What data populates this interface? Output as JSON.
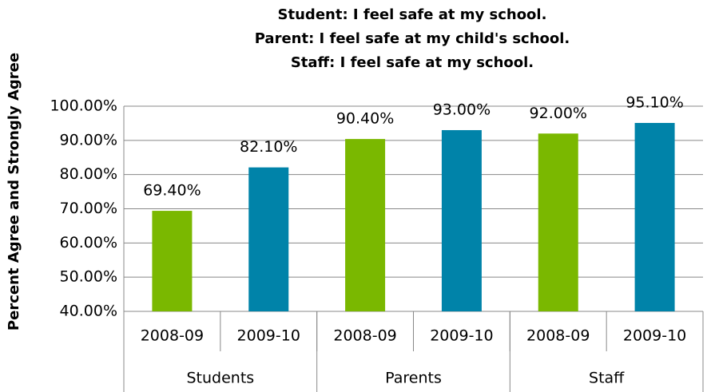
{
  "chart_data": {
    "type": "bar",
    "title": [
      "Student: I feel safe at my school.",
      "Parent: I feel safe at my child's school.",
      "Staff: I feel safe at my school."
    ],
    "y_label": "Percent Agree and Strongly Agree",
    "categories": [
      "2008-09",
      "2009-10",
      "2008-09",
      "2009-10",
      "2008-09",
      "2009-10"
    ],
    "groups": [
      "Students",
      "Parents",
      "Staff"
    ],
    "values": [
      69.4,
      82.1,
      90.4,
      93.0,
      92.0,
      95.1
    ],
    "value_labels": [
      "69.40%",
      "82.10%",
      "90.40%",
      "93.00%",
      "92.00%",
      "95.10%"
    ],
    "colors": [
      "#7ab800",
      "#0083a9",
      "#7ab800",
      "#0083a9",
      "#7ab800",
      "#0083a9"
    ],
    "ylim": [
      40,
      100
    ],
    "yticks": [
      {
        "value": 40,
        "label": "40.00%"
      },
      {
        "value": 50,
        "label": "50.00%"
      },
      {
        "value": 60,
        "label": "60.00%"
      },
      {
        "value": 70,
        "label": "70.00%"
      },
      {
        "value": 80,
        "label": "80.00%"
      },
      {
        "value": 90,
        "label": "90.00%"
      },
      {
        "value": 100,
        "label": "100.00%"
      }
    ],
    "grid": true
  }
}
